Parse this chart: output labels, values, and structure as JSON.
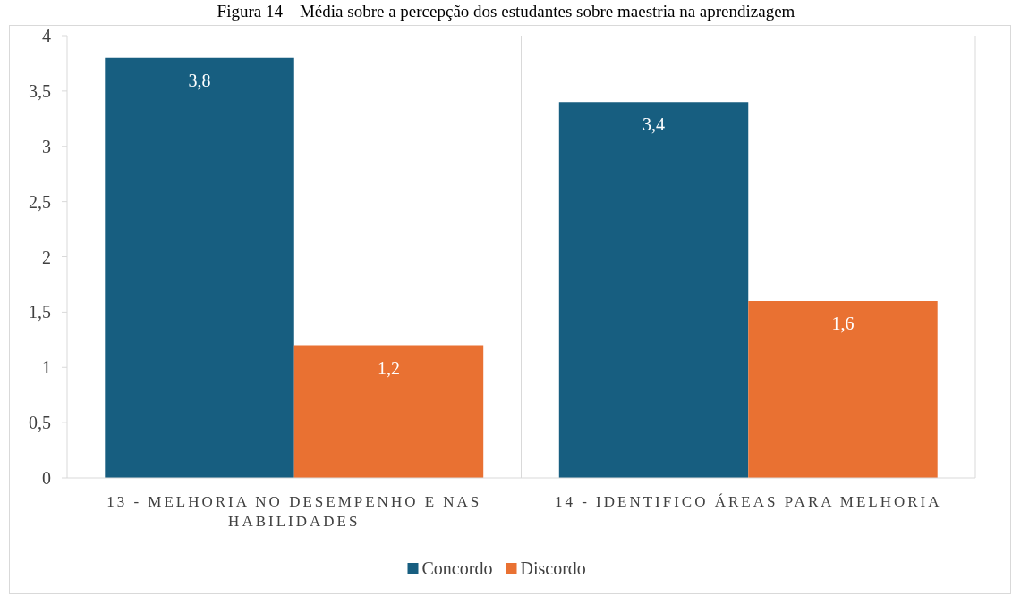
{
  "chart_data": {
    "type": "bar",
    "title": "Figura 14 – Média sobre a percepção dos estudantes sobre maestria na aprendizagem",
    "categories": [
      "13 - MELHORIA NO DESEMPENHO E NAS HABILIDADES",
      "14 - IDENTIFICO ÁREAS PARA MELHORIA"
    ],
    "series": [
      {
        "name": "Concordo",
        "color": "#175e80",
        "values": [
          3.8,
          3.4
        ],
        "value_labels": [
          "3,8",
          "3,4"
        ]
      },
      {
        "name": "Discordo",
        "color": "#e97132",
        "values": [
          1.2,
          1.6
        ],
        "value_labels": [
          "1,2",
          "1,6"
        ]
      }
    ],
    "ylim": [
      0,
      4
    ],
    "yticks": [
      0,
      {
        "value": 0.5,
        "label": "0,5"
      },
      1,
      {
        "value": 1.5,
        "label": "1,5"
      },
      2,
      {
        "value": 2.5,
        "label": "2,5"
      },
      3,
      {
        "value": 3.5,
        "label": "3,5"
      },
      4
    ],
    "grid": false,
    "legend": "bottom"
  }
}
